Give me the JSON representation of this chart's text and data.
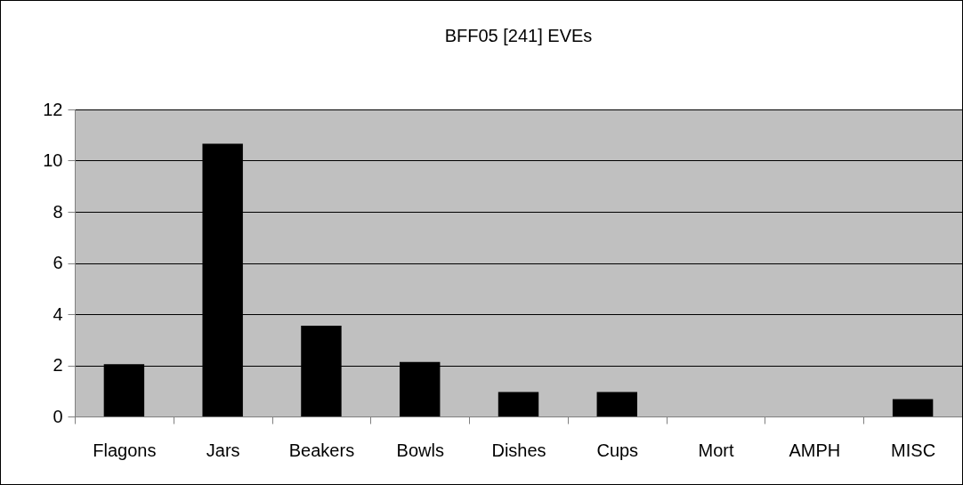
{
  "chart_data": {
    "type": "bar",
    "title": "BFF05 [241] EVEs",
    "categories": [
      "Flagons",
      "Jars",
      "Beakers",
      "Bowls",
      "Dishes",
      "Cups",
      "Mort",
      "AMPH",
      "MISC"
    ],
    "values": [
      2.04,
      10.66,
      3.55,
      2.13,
      0.96,
      0.96,
      0,
      0,
      0.68
    ],
    "color": "#000000",
    "ylim": [
      0,
      12
    ],
    "yticks": [
      0,
      2,
      4,
      6,
      8,
      10,
      12
    ],
    "grid": "y"
  }
}
